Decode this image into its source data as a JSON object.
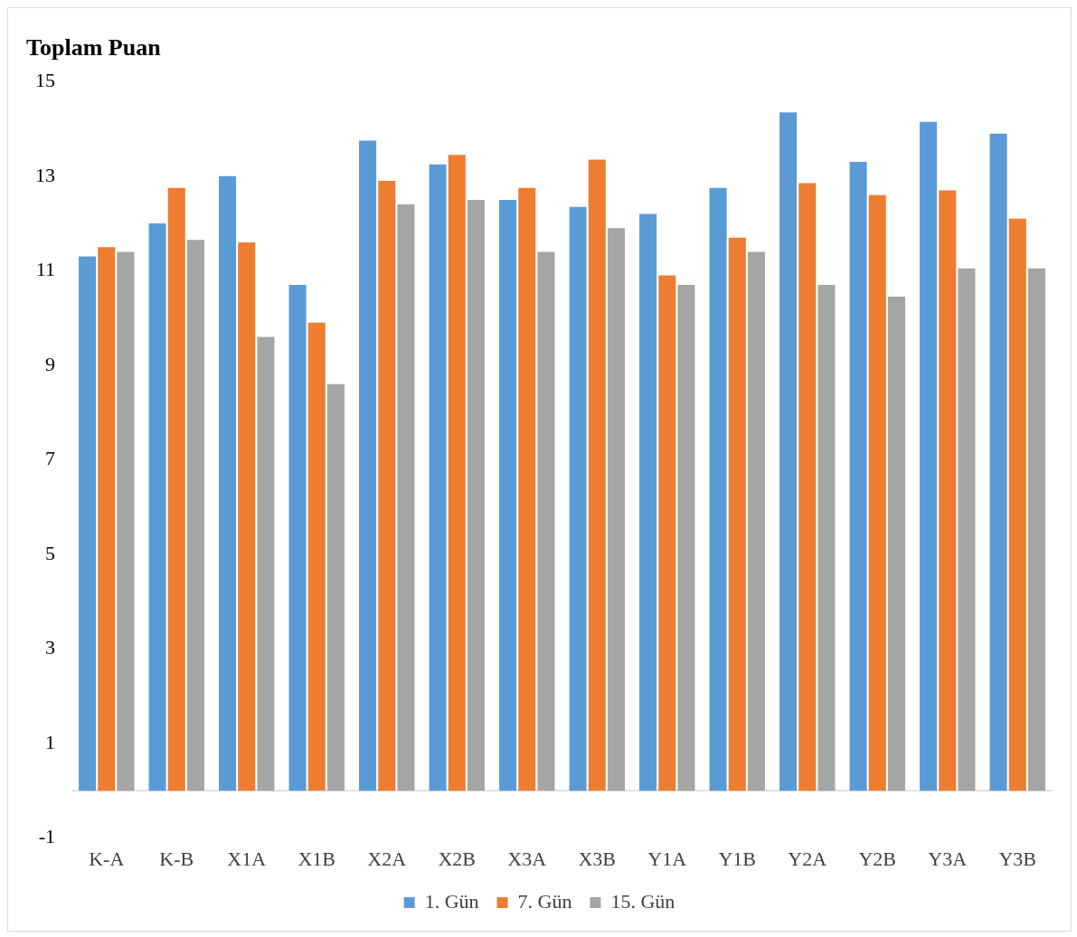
{
  "chart_data": {
    "type": "bar",
    "title": "Toplam Puan",
    "categories": [
      "K-A",
      "K-B",
      "X1A",
      "X1B",
      "X2A",
      "X2B",
      "X3A",
      "X3B",
      "Y1A",
      "Y1B",
      "Y2A",
      "Y2B",
      "Y3A",
      "Y3B"
    ],
    "series": [
      {
        "name": "1. Gün",
        "color": "#5b9bd5",
        "values": [
          11.3,
          12.0,
          13.0,
          10.7,
          13.75,
          13.25,
          12.5,
          12.35,
          12.2,
          12.75,
          14.35,
          13.3,
          14.15,
          13.9
        ]
      },
      {
        "name": "7. Gün",
        "color": "#ed7d31",
        "values": [
          11.5,
          12.75,
          11.6,
          9.9,
          12.9,
          13.45,
          12.75,
          13.35,
          10.9,
          11.7,
          12.85,
          12.6,
          12.7,
          12.1
        ]
      },
      {
        "name": "15. Gün",
        "color": "#a5a5a5",
        "values": [
          11.4,
          11.65,
          9.6,
          8.6,
          12.4,
          12.5,
          11.4,
          11.9,
          10.7,
          11.4,
          10.7,
          10.45,
          11.05,
          11.05
        ]
      }
    ],
    "ylim": [
      -1,
      15
    ],
    "yticks": [
      -1,
      1,
      3,
      5,
      7,
      9,
      11,
      13,
      15
    ],
    "grid": false,
    "legend": "bottom"
  }
}
